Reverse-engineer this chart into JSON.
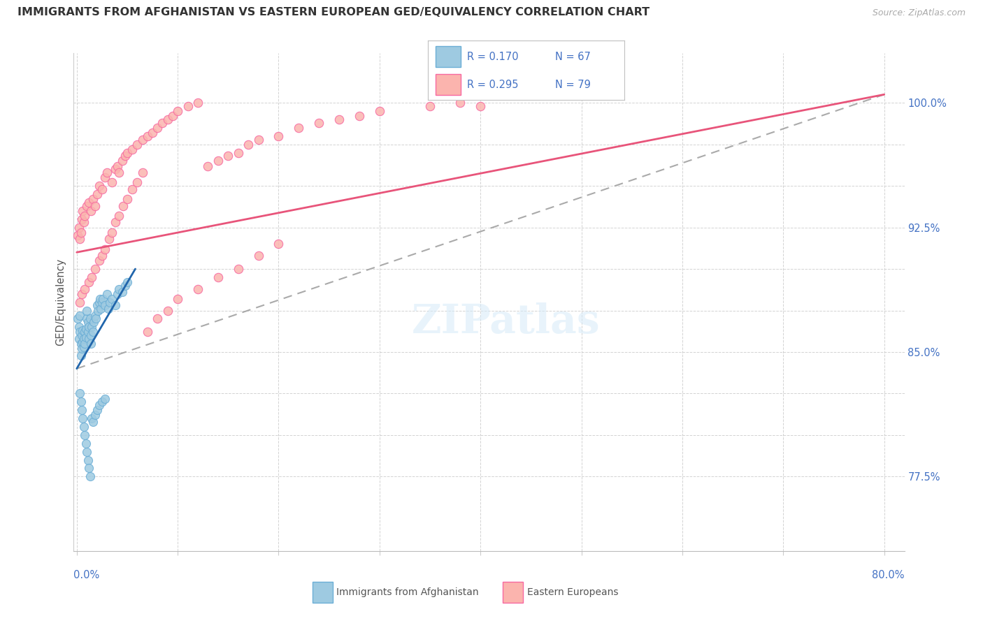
{
  "title": "IMMIGRANTS FROM AFGHANISTAN VS EASTERN EUROPEAN GED/EQUIVALENCY CORRELATION CHART",
  "source": "Source: ZipAtlas.com",
  "ylabel": "GED/Equivalency",
  "ymin": 0.73,
  "ymax": 1.03,
  "xmin": -0.003,
  "xmax": 0.82,
  "color_blue": "#9ecae1",
  "color_blue_edge": "#6baed6",
  "color_blue_line": "#2166ac",
  "color_pink": "#fbb4ae",
  "color_pink_edge": "#f768a1",
  "color_pink_line": "#e8547a",
  "color_axis_label": "#4472C4",
  "color_grid": "#c8c8c8",
  "color_watermark": "#d6eaf8",
  "afghanistan_x": [
    0.001,
    0.002,
    0.002,
    0.003,
    0.003,
    0.004,
    0.004,
    0.005,
    0.005,
    0.006,
    0.006,
    0.007,
    0.007,
    0.008,
    0.008,
    0.009,
    0.009,
    0.01,
    0.01,
    0.011,
    0.011,
    0.012,
    0.012,
    0.013,
    0.014,
    0.014,
    0.015,
    0.016,
    0.017,
    0.018,
    0.019,
    0.02,
    0.021,
    0.022,
    0.023,
    0.024,
    0.025,
    0.026,
    0.028,
    0.03,
    0.031,
    0.033,
    0.035,
    0.038,
    0.04,
    0.042,
    0.045,
    0.048,
    0.05,
    0.003,
    0.004,
    0.005,
    0.006,
    0.007,
    0.008,
    0.009,
    0.01,
    0.011,
    0.012,
    0.013,
    0.015,
    0.016,
    0.018,
    0.02,
    0.022,
    0.025,
    0.028
  ],
  "afghanistan_y": [
    0.87,
    0.865,
    0.858,
    0.862,
    0.872,
    0.855,
    0.848,
    0.852,
    0.86,
    0.856,
    0.863,
    0.858,
    0.853,
    0.862,
    0.855,
    0.859,
    0.864,
    0.87,
    0.875,
    0.868,
    0.862,
    0.865,
    0.858,
    0.87,
    0.86,
    0.855,
    0.865,
    0.862,
    0.868,
    0.872,
    0.87,
    0.878,
    0.875,
    0.88,
    0.882,
    0.876,
    0.88,
    0.882,
    0.878,
    0.885,
    0.876,
    0.88,
    0.882,
    0.878,
    0.885,
    0.888,
    0.886,
    0.89,
    0.892,
    0.825,
    0.82,
    0.815,
    0.81,
    0.805,
    0.8,
    0.795,
    0.79,
    0.785,
    0.78,
    0.775,
    0.81,
    0.808,
    0.812,
    0.815,
    0.818,
    0.82,
    0.822
  ],
  "eastern_x": [
    0.001,
    0.002,
    0.003,
    0.004,
    0.005,
    0.006,
    0.007,
    0.008,
    0.01,
    0.012,
    0.014,
    0.016,
    0.018,
    0.02,
    0.022,
    0.025,
    0.028,
    0.03,
    0.035,
    0.038,
    0.04,
    0.042,
    0.045,
    0.048,
    0.05,
    0.055,
    0.06,
    0.065,
    0.07,
    0.075,
    0.08,
    0.085,
    0.09,
    0.095,
    0.1,
    0.11,
    0.12,
    0.13,
    0.14,
    0.15,
    0.16,
    0.17,
    0.18,
    0.2,
    0.22,
    0.24,
    0.26,
    0.28,
    0.3,
    0.35,
    0.38,
    0.4,
    0.003,
    0.005,
    0.008,
    0.012,
    0.015,
    0.018,
    0.022,
    0.025,
    0.028,
    0.032,
    0.035,
    0.038,
    0.042,
    0.046,
    0.05,
    0.055,
    0.06,
    0.065,
    0.07,
    0.08,
    0.09,
    0.1,
    0.12,
    0.14,
    0.16,
    0.18,
    0.2
  ],
  "eastern_y": [
    0.92,
    0.925,
    0.918,
    0.922,
    0.93,
    0.935,
    0.928,
    0.932,
    0.938,
    0.94,
    0.935,
    0.942,
    0.938,
    0.945,
    0.95,
    0.948,
    0.955,
    0.958,
    0.952,
    0.96,
    0.962,
    0.958,
    0.965,
    0.968,
    0.97,
    0.972,
    0.975,
    0.978,
    0.98,
    0.982,
    0.985,
    0.988,
    0.99,
    0.992,
    0.995,
    0.998,
    1.0,
    0.962,
    0.965,
    0.968,
    0.97,
    0.975,
    0.978,
    0.98,
    0.985,
    0.988,
    0.99,
    0.992,
    0.995,
    0.998,
    1.0,
    0.998,
    0.88,
    0.885,
    0.888,
    0.892,
    0.895,
    0.9,
    0.905,
    0.908,
    0.912,
    0.918,
    0.922,
    0.928,
    0.932,
    0.938,
    0.942,
    0.948,
    0.952,
    0.958,
    0.862,
    0.87,
    0.875,
    0.882,
    0.888,
    0.895,
    0.9,
    0.908,
    0.915
  ],
  "afg_trend_x": [
    0.0,
    0.058
  ],
  "afg_trend_y": [
    0.84,
    0.9
  ],
  "east_trend_x": [
    0.0,
    0.8
  ],
  "east_trend_y": [
    0.91,
    1.005
  ],
  "dashed_trend_x": [
    0.0,
    0.8
  ],
  "dashed_trend_y": [
    0.84,
    1.005
  ]
}
